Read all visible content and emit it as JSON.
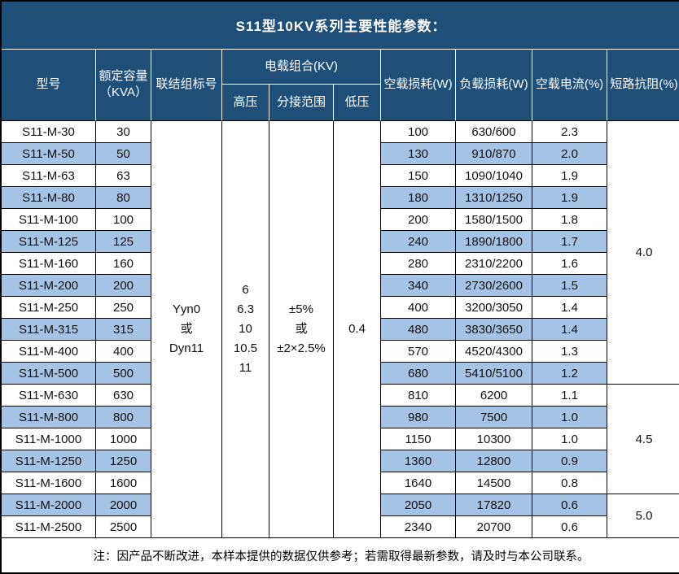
{
  "title": "S11型10KV系列主要性能参数：",
  "colors": {
    "header_bg": "#1F4E79",
    "stripe_bg": "#A5C4E5",
    "border_dark": "#000000",
    "border_light": "#ffffff",
    "header_text": "#ffffff",
    "body_text": "#111111"
  },
  "table": {
    "headers": {
      "model": "型号",
      "capacity": "额定容量\n（KVA）",
      "vector_group": "联结组标号",
      "voltage_combo": "电载组合(KV)",
      "hv": "高压",
      "tap_range": "分接范围",
      "lv": "低压",
      "no_load_loss": "空载损耗(W)",
      "load_loss": "负载损耗(W)",
      "no_load_current": "空载电流(%)",
      "impedance": "短路抗阻(%)"
    },
    "shared": {
      "vector_group_value": "Yyn0\n或\nDyn11",
      "hv_value": "6\n6.3\n10\n10.5\n11",
      "tap_range_value": "±5%\n或\n±2×2.5%",
      "lv_value": "0.4"
    },
    "rows": [
      {
        "model": "S11-M-30",
        "capacity": "30",
        "no_load_loss": "100",
        "load_loss": "630/600",
        "no_load_current": "2.3"
      },
      {
        "model": "S11-M-50",
        "capacity": "50",
        "no_load_loss": "130",
        "load_loss": "910/870",
        "no_load_current": "2.0"
      },
      {
        "model": "S11-M-63",
        "capacity": "63",
        "no_load_loss": "150",
        "load_loss": "1090/1040",
        "no_load_current": "1.9"
      },
      {
        "model": "S11-M-80",
        "capacity": "80",
        "no_load_loss": "180",
        "load_loss": "1310/1250",
        "no_load_current": "1.9"
      },
      {
        "model": "S11-M-100",
        "capacity": "100",
        "no_load_loss": "200",
        "load_loss": "1580/1500",
        "no_load_current": "1.8"
      },
      {
        "model": "S11-M-125",
        "capacity": "125",
        "no_load_loss": "240",
        "load_loss": "1890/1800",
        "no_load_current": "1.7"
      },
      {
        "model": "S11-M-160",
        "capacity": "160",
        "no_load_loss": "280",
        "load_loss": "2310/2200",
        "no_load_current": "1.6"
      },
      {
        "model": "S11-M-200",
        "capacity": "200",
        "no_load_loss": "340",
        "load_loss": "2730/2600",
        "no_load_current": "1.5"
      },
      {
        "model": "S11-M-250",
        "capacity": "250",
        "no_load_loss": "400",
        "load_loss": "3200/3050",
        "no_load_current": "1.4"
      },
      {
        "model": "S11-M-315",
        "capacity": "315",
        "no_load_loss": "480",
        "load_loss": "3830/3650",
        "no_load_current": "1.4"
      },
      {
        "model": "S11-M-400",
        "capacity": "400",
        "no_load_loss": "570",
        "load_loss": "4520/4300",
        "no_load_current": "1.3"
      },
      {
        "model": "S11-M-500",
        "capacity": "500",
        "no_load_loss": "680",
        "load_loss": "5410/5100",
        "no_load_current": "1.2"
      },
      {
        "model": "S11-M-630",
        "capacity": "630",
        "no_load_loss": "810",
        "load_loss": "6200",
        "no_load_current": "1.1"
      },
      {
        "model": "S11-M-800",
        "capacity": "800",
        "no_load_loss": "980",
        "load_loss": "7500",
        "no_load_current": "1.0"
      },
      {
        "model": "S11-M-1000",
        "capacity": "1000",
        "no_load_loss": "1150",
        "load_loss": "10300",
        "no_load_current": "1.0"
      },
      {
        "model": "S11-M-1250",
        "capacity": "1250",
        "no_load_loss": "1360",
        "load_loss": "12800",
        "no_load_current": "0.9"
      },
      {
        "model": "S11-M-1600",
        "capacity": "1600",
        "no_load_loss": "1640",
        "load_loss": "14500",
        "no_load_current": "0.8"
      },
      {
        "model": "S11-M-2000",
        "capacity": "2000",
        "no_load_loss": "2050",
        "load_loss": "17820",
        "no_load_current": "0.6"
      },
      {
        "model": "S11-M-2500",
        "capacity": "2500",
        "no_load_loss": "2340",
        "load_loss": "20700",
        "no_load_current": "0.6"
      }
    ],
    "impedance_groups": [
      {
        "value": "4.0",
        "start": 0,
        "span": 12
      },
      {
        "value": "4.5",
        "start": 12,
        "span": 5
      },
      {
        "value": "5.0",
        "start": 17,
        "span": 2
      }
    ]
  },
  "note": "注：因产品不断改进，本样本提供的数据仅供参考；若需取得最新参数，请及时与本公司联系。"
}
